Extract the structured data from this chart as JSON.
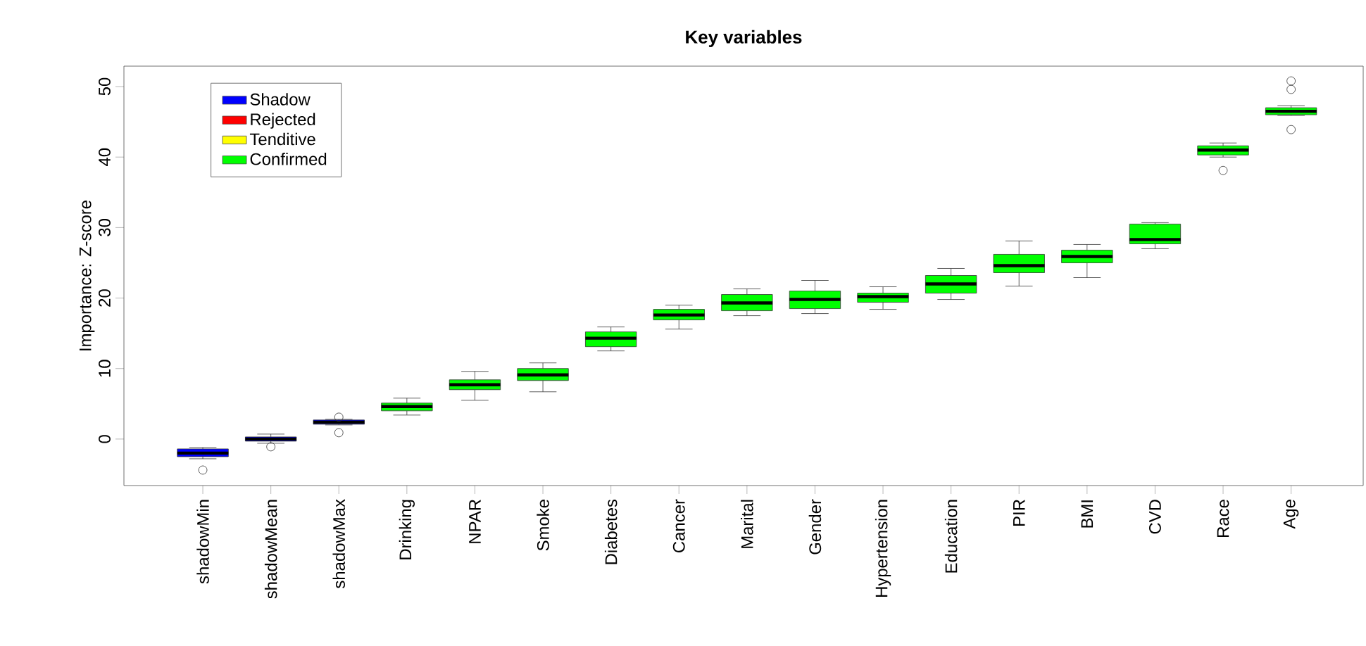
{
  "chart_data": {
    "type": "box",
    "title": "Key variables",
    "ylabel": "Importance: Z-score",
    "categories": [
      "shadowMin",
      "shadowMean",
      "shadowMax",
      "Drinking",
      "NPAR",
      "Smoke",
      "Diabetes",
      "Cancer",
      "Marital",
      "Gender",
      "Hypertension",
      "Education",
      "PIR",
      "BMI",
      "CVD",
      "Race",
      "Age"
    ],
    "ylim": [
      -6.6,
      52.9
    ],
    "yticks": [
      0,
      10,
      20,
      30,
      40,
      50
    ],
    "legend": "top left",
    "series": [
      {
        "name": "Shadow",
        "color": "#0000ff",
        "boxes": [
          {
            "low": -2.8,
            "q1": -2.5,
            "median": -2.0,
            "q3": -1.4,
            "high": -1.2,
            "outliers": [
              -4.4
            ]
          },
          {
            "low": -0.6,
            "q1": -0.3,
            "median": 0.0,
            "q3": 0.3,
            "high": 0.7,
            "outliers": [
              -1.1
            ]
          },
          {
            "low": 2.0,
            "q1": 2.1,
            "median": 2.4,
            "q3": 2.7,
            "high": 2.8,
            "outliers": [
              0.9,
              3.1
            ]
          },
          null,
          null,
          null,
          null,
          null,
          null,
          null,
          null,
          null,
          null,
          null,
          null,
          null,
          null
        ]
      },
      {
        "name": "Rejected",
        "color": "#ff0000",
        "boxes": [
          null,
          null,
          null,
          null,
          null,
          null,
          null,
          null,
          null,
          null,
          null,
          null,
          null,
          null,
          null,
          null,
          null
        ]
      },
      {
        "name": "Tenditive",
        "color": "#ffff00",
        "boxes": [
          null,
          null,
          null,
          null,
          null,
          null,
          null,
          null,
          null,
          null,
          null,
          null,
          null,
          null,
          null,
          null,
          null
        ]
      },
      {
        "name": "Confirmed",
        "color": "#00ff00",
        "boxes": [
          null,
          null,
          null,
          {
            "low": 3.4,
            "q1": 4.0,
            "median": 4.6,
            "q3": 5.1,
            "high": 5.8
          },
          {
            "low": 5.5,
            "q1": 7.0,
            "median": 7.7,
            "q3": 8.4,
            "high": 9.6
          },
          {
            "low": 6.7,
            "q1": 8.3,
            "median": 9.1,
            "q3": 10.0,
            "high": 10.8
          },
          {
            "low": 12.5,
            "q1": 13.1,
            "median": 14.3,
            "q3": 15.2,
            "high": 15.9
          },
          {
            "low": 15.6,
            "q1": 16.9,
            "median": 17.6,
            "q3": 18.4,
            "high": 19.0
          },
          {
            "low": 17.5,
            "q1": 18.2,
            "median": 19.3,
            "q3": 20.5,
            "high": 21.3
          },
          {
            "low": 17.8,
            "q1": 18.5,
            "median": 19.8,
            "q3": 21.0,
            "high": 22.5
          },
          {
            "low": 18.4,
            "q1": 19.4,
            "median": 20.2,
            "q3": 20.7,
            "high": 21.6
          },
          {
            "low": 19.8,
            "q1": 20.7,
            "median": 22.0,
            "q3": 23.2,
            "high": 24.2
          },
          {
            "low": 21.7,
            "q1": 23.6,
            "median": 24.6,
            "q3": 26.2,
            "high": 28.1
          },
          {
            "low": 22.9,
            "q1": 25.0,
            "median": 25.9,
            "q3": 26.8,
            "high": 27.6
          },
          {
            "low": 27.0,
            "q1": 27.7,
            "median": 28.3,
            "q3": 30.5,
            "high": 30.7
          },
          {
            "low": 40.0,
            "q1": 40.3,
            "median": 41.0,
            "q3": 41.6,
            "high": 42.0,
            "outliers": [
              38.1
            ]
          },
          {
            "low": 45.9,
            "q1": 46.0,
            "median": 46.5,
            "q3": 47.0,
            "high": 47.3,
            "outliers": [
              43.9,
              49.6,
              50.8
            ]
          }
        ]
      }
    ]
  }
}
